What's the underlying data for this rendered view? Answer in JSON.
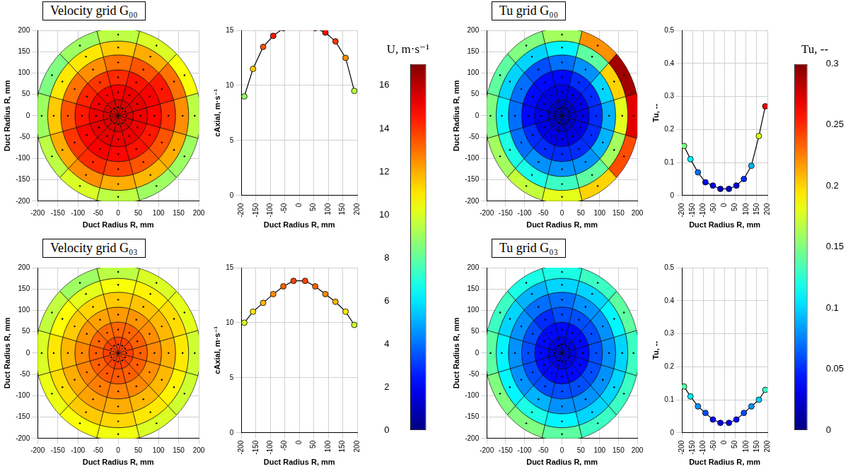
{
  "chart_data": [
    {
      "type": "heatmap",
      "colorbar": {
        "title": "U, m·s⁻¹",
        "lim": [
          0,
          17
        ],
        "ticks": [
          0,
          2,
          4,
          6,
          8,
          10,
          12,
          14,
          16
        ],
        "color": "jet"
      },
      "panels": [
        {
          "title": "Velocity grid G₀₀",
          "xlabel": "Duct Radius R, mm",
          "ylabel": "Duct Radius R, mm",
          "zlabel": "cAxial, m·s⁻¹",
          "xlim": [
            -200,
            200
          ],
          "xticks": [
            -200,
            -150,
            -100,
            -50,
            0,
            50,
            100,
            150,
            200
          ],
          "ylim": [
            -200,
            200
          ],
          "yticks": [
            -200,
            -150,
            -100,
            -50,
            0,
            50,
            100,
            150,
            200
          ],
          "zlim": [
            0,
            15
          ],
          "zticks": [
            0,
            5,
            10,
            15
          ],
          "grid": true,
          "radii": [
            20,
            55,
            90,
            125,
            160,
            190
          ],
          "angles": [
            0,
            30,
            60,
            90,
            120,
            150,
            180,
            210,
            240,
            270,
            300,
            330
          ],
          "cells": [
            [
              15.5,
              15.2,
              14.8,
              14.0,
              12.5,
              9.5
            ],
            [
              15.5,
              15.3,
              15.0,
              14.5,
              13.0,
              10.5
            ],
            [
              15.5,
              15.2,
              14.6,
              13.5,
              12.0,
              10.0
            ],
            [
              15.5,
              15.0,
              14.2,
              13.0,
              11.5,
              9.5
            ],
            [
              15.5,
              15.0,
              14.0,
              12.5,
              11.0,
              9.0
            ],
            [
              15.5,
              15.1,
              14.3,
              13.0,
              11.0,
              8.5
            ],
            [
              15.5,
              15.2,
              14.5,
              13.5,
              11.5,
              9.0
            ],
            [
              15.5,
              15.3,
              14.8,
              14.0,
              12.0,
              9.5
            ],
            [
              15.5,
              15.3,
              15.0,
              14.2,
              12.5,
              10.0
            ],
            [
              15.5,
              15.2,
              14.8,
              13.8,
              12.0,
              9.5
            ],
            [
              15.5,
              15.2,
              14.6,
              13.5,
              11.8,
              9.0
            ],
            [
              15.5,
              15.1,
              14.5,
              13.5,
              12.0,
              9.0
            ]
          ]
        },
        {
          "title": "Velocity grid G₀₃",
          "xlabel": "Duct Radius R, mm",
          "ylabel": "Duct Radius R, mm",
          "zlabel": "cAxial, m·s⁻¹",
          "xlim": [
            -200,
            200
          ],
          "xticks": [
            -200,
            -150,
            -100,
            -50,
            0,
            50,
            100,
            150,
            200
          ],
          "ylim": [
            -200,
            200
          ],
          "yticks": [
            -200,
            -150,
            -100,
            -50,
            0,
            50,
            100,
            150,
            200
          ],
          "zlim": [
            0,
            15
          ],
          "zticks": [
            0,
            5,
            10,
            15
          ],
          "grid": true,
          "radii": [
            20,
            55,
            90,
            125,
            160,
            190
          ],
          "angles": [
            0,
            30,
            60,
            90,
            120,
            150,
            180,
            210,
            240,
            270,
            300,
            330
          ],
          "cells": [
            [
              13.8,
              13.3,
              12.6,
              11.9,
              11.0,
              9.8
            ],
            [
              13.8,
              13.3,
              12.5,
              11.8,
              11.2,
              10.2
            ],
            [
              13.8,
              13.2,
              12.4,
              11.6,
              10.8,
              10.0
            ],
            [
              13.8,
              13.2,
              12.3,
              11.5,
              10.5,
              9.5
            ],
            [
              13.8,
              13.1,
              12.2,
              11.3,
              10.2,
              9.0
            ],
            [
              13.8,
              13.2,
              12.4,
              11.5,
              10.6,
              9.6
            ],
            [
              13.8,
              13.3,
              12.6,
              11.8,
              11.0,
              10.0
            ],
            [
              13.8,
              13.3,
              12.7,
              12.0,
              11.2,
              10.3
            ],
            [
              13.8,
              13.4,
              12.8,
              12.2,
              11.5,
              10.5
            ],
            [
              13.8,
              13.4,
              12.7,
              12.0,
              11.3,
              10.4
            ],
            [
              13.8,
              13.3,
              12.6,
              11.8,
              11.0,
              10.0
            ],
            [
              13.8,
              13.3,
              12.5,
              11.8,
              10.8,
              9.8
            ]
          ]
        }
      ]
    },
    {
      "type": "heatmap",
      "colorbar": {
        "title": "Tu, --",
        "lim": [
          0,
          0.3
        ],
        "ticks": [
          0,
          0.05,
          0.1,
          0.15,
          0.2,
          0.25,
          0.3
        ],
        "color": "jet"
      },
      "panels": [
        {
          "title": "Tu grid G₀₀",
          "xlabel": "Duct Radius R, mm",
          "ylabel": "Duct Radius R, mm",
          "zlabel": "Tu, --",
          "xlim": [
            -200,
            200
          ],
          "xticks": [
            -200,
            -150,
            -100,
            -50,
            0,
            50,
            100,
            150,
            200
          ],
          "ylim": [
            -200,
            200
          ],
          "yticks": [
            -200,
            -150,
            -100,
            -50,
            0,
            50,
            100,
            150,
            200
          ],
          "zlim": [
            0,
            0.5
          ],
          "zticks": [
            0,
            0.1,
            0.2,
            0.3,
            0.4,
            0.5
          ],
          "grid": true,
          "radii": [
            20,
            55,
            90,
            125,
            160,
            190
          ],
          "angles": [
            0,
            30,
            60,
            90,
            120,
            150,
            180,
            210,
            240,
            270,
            300,
            330
          ],
          "cells": [
            [
              0.02,
              0.03,
              0.05,
              0.09,
              0.18,
              0.27
            ],
            [
              0.02,
              0.03,
              0.05,
              0.1,
              0.2,
              0.29
            ],
            [
              0.02,
              0.03,
              0.05,
              0.08,
              0.14,
              0.22
            ],
            [
              0.02,
              0.03,
              0.04,
              0.07,
              0.11,
              0.16
            ],
            [
              0.02,
              0.03,
              0.04,
              0.06,
              0.1,
              0.15
            ],
            [
              0.02,
              0.03,
              0.04,
              0.07,
              0.1,
              0.14
            ],
            [
              0.02,
              0.03,
              0.04,
              0.07,
              0.11,
              0.15
            ],
            [
              0.02,
              0.03,
              0.05,
              0.07,
              0.12,
              0.16
            ],
            [
              0.02,
              0.03,
              0.05,
              0.08,
              0.12,
              0.17
            ],
            [
              0.02,
              0.03,
              0.05,
              0.08,
              0.13,
              0.18
            ],
            [
              0.02,
              0.03,
              0.05,
              0.08,
              0.14,
              0.2
            ],
            [
              0.02,
              0.03,
              0.05,
              0.09,
              0.16,
              0.24
            ]
          ]
        },
        {
          "title": "Tu grid G₀₃",
          "xlabel": "Duct Radius R, mm",
          "ylabel": "Duct Radius R, mm",
          "zlabel": "Tu, --",
          "xlim": [
            -200,
            200
          ],
          "xticks": [
            -200,
            -150,
            -100,
            -50,
            0,
            50,
            100,
            150,
            200
          ],
          "ylim": [
            -200,
            200
          ],
          "yticks": [
            -200,
            -150,
            -100,
            -50,
            0,
            50,
            100,
            150,
            200
          ],
          "zlim": [
            0,
            0.5
          ],
          "zticks": [
            0,
            0.1,
            0.2,
            0.3,
            0.4,
            0.5
          ],
          "grid": true,
          "radii": [
            20,
            55,
            90,
            125,
            160,
            190
          ],
          "angles": [
            0,
            30,
            60,
            90,
            120,
            150,
            180,
            210,
            240,
            270,
            300,
            330
          ],
          "cells": [
            [
              0.03,
              0.04,
              0.06,
              0.08,
              0.1,
              0.13
            ],
            [
              0.03,
              0.04,
              0.06,
              0.08,
              0.11,
              0.14
            ],
            [
              0.03,
              0.04,
              0.06,
              0.08,
              0.1,
              0.13
            ],
            [
              0.03,
              0.04,
              0.06,
              0.07,
              0.1,
              0.12
            ],
            [
              0.03,
              0.04,
              0.05,
              0.07,
              0.09,
              0.12
            ],
            [
              0.03,
              0.04,
              0.06,
              0.08,
              0.1,
              0.13
            ],
            [
              0.03,
              0.04,
              0.06,
              0.08,
              0.11,
              0.14
            ],
            [
              0.03,
              0.04,
              0.06,
              0.08,
              0.11,
              0.15
            ],
            [
              0.03,
              0.04,
              0.06,
              0.09,
              0.12,
              0.15
            ],
            [
              0.03,
              0.04,
              0.06,
              0.08,
              0.11,
              0.14
            ],
            [
              0.03,
              0.04,
              0.06,
              0.08,
              0.1,
              0.13
            ],
            [
              0.03,
              0.04,
              0.06,
              0.08,
              0.1,
              0.13
            ]
          ]
        }
      ]
    }
  ]
}
